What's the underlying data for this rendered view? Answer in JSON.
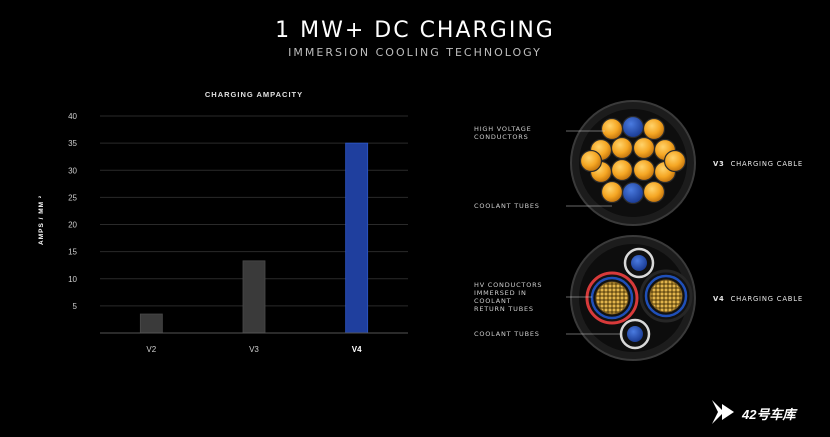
{
  "title": "1 MW+ DC CHARGING",
  "subtitle": "IMMERSION COOLING TECHNOLOGY",
  "chart_data": {
    "type": "bar",
    "title": "CHARGING AMPACITY",
    "ylabel": "AMPS / MM ²",
    "xlabel": "",
    "categories": [
      "V2",
      "V3",
      "V4"
    ],
    "values": [
      3.5,
      13.3,
      35
    ],
    "colors": [
      "#3a3a3a",
      "#3a3a3a",
      "#1f3f9e"
    ],
    "ylim": [
      0,
      40
    ],
    "yticks": [
      "5",
      "10",
      "15",
      "20",
      "25",
      "30",
      "35",
      "40"
    ],
    "grid": true
  },
  "cables": {
    "v3": {
      "name_prefix": "V3",
      "name_suffix": "CHARGING CABLE",
      "label_hv_line1": "HIGH VOLTAGE",
      "label_hv_line2": "CONDUCTORS",
      "label_coolant": "COOLANT TUBES"
    },
    "v4": {
      "name_prefix": "V4",
      "name_suffix": "CHARGING CABLE",
      "label_hv_line1": "HV CONDUCTORS",
      "label_hv_line2": "IMMERSED IN",
      "label_hv_line3": "COOLANT",
      "label_hv_line4": "RETURN TUBES",
      "label_coolant": "COOLANT TUBES"
    }
  },
  "colors": {
    "conductor": "#f5a623",
    "coolant": "#1f4fb8",
    "return_tube": "#d83a3a"
  },
  "watermark": {
    "text": "42号车库",
    "icon": "play-logo-icon"
  }
}
